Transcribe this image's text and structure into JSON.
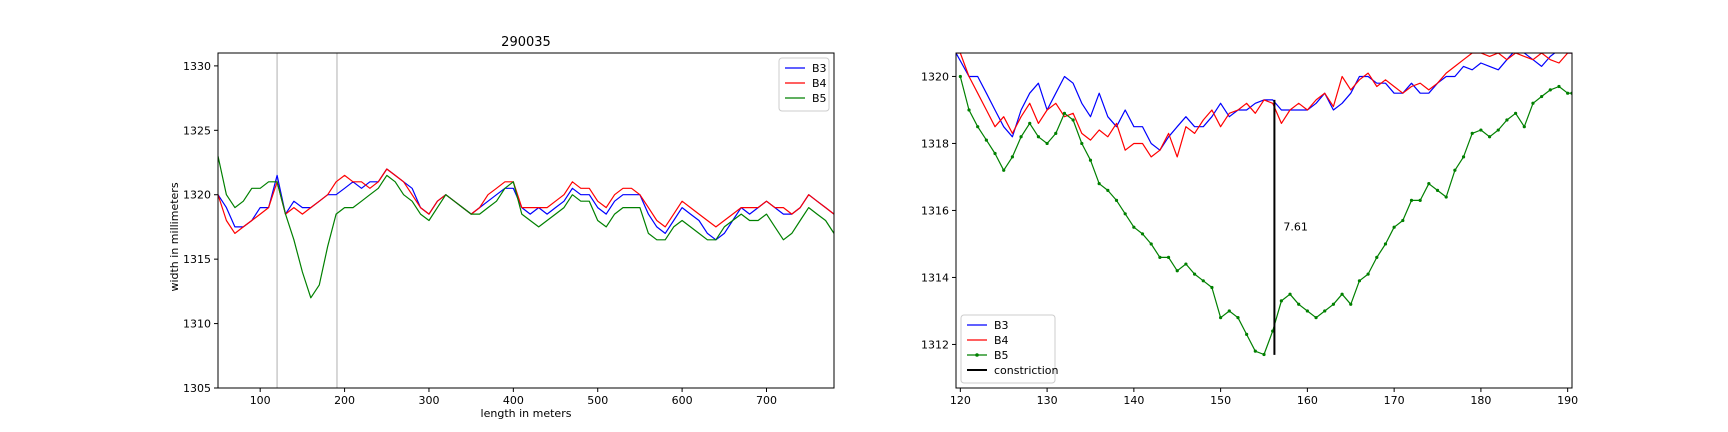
{
  "chart_data": [
    {
      "type": "line",
      "title": "290035",
      "xlabel": "length in meters",
      "ylabel": "width in millimeters",
      "xlim": [
        50,
        780
      ],
      "ylim": [
        1305,
        1331
      ],
      "xticks": [
        100,
        200,
        300,
        400,
        500,
        600,
        700
      ],
      "yticks": [
        1305,
        1310,
        1315,
        1320,
        1325,
        1330
      ],
      "vlines": [
        120,
        191
      ],
      "legend_position": "top-right",
      "grid": false,
      "series": [
        {
          "name": "B3",
          "color": "#0000ff",
          "x": [
            50,
            60,
            70,
            80,
            90,
            100,
            110,
            120,
            130,
            140,
            150,
            160,
            170,
            180,
            190,
            200,
            210,
            220,
            230,
            240,
            250,
            260,
            270,
            280,
            290,
            300,
            310,
            320,
            330,
            340,
            350,
            360,
            370,
            380,
            390,
            400,
            410,
            420,
            430,
            440,
            450,
            460,
            470,
            480,
            490,
            500,
            510,
            520,
            530,
            540,
            550,
            560,
            570,
            580,
            590,
            600,
            610,
            620,
            630,
            640,
            650,
            660,
            670,
            680,
            690,
            700,
            710,
            720,
            730,
            740,
            750,
            760,
            770,
            780
          ],
          "y": [
            1320,
            1319,
            1317.5,
            1317.5,
            1318,
            1319,
            1319,
            1321.5,
            1318.5,
            1319.5,
            1319,
            1319,
            1319.5,
            1320,
            1320,
            1320.5,
            1321,
            1320.5,
            1321,
            1321,
            1322,
            1321.5,
            1321,
            1320.5,
            1319,
            1318.5,
            1319.5,
            1320,
            1319.5,
            1319,
            1318.5,
            1319,
            1319.5,
            1320,
            1320.5,
            1320.5,
            1319,
            1318.5,
            1319,
            1318.5,
            1319,
            1319.5,
            1320.5,
            1320,
            1320,
            1319,
            1318.5,
            1319.5,
            1320,
            1320,
            1320,
            1318.5,
            1317.5,
            1317,
            1318,
            1319,
            1318.5,
            1318,
            1317,
            1316.5,
            1317,
            1318,
            1319,
            1318.5,
            1319,
            1319.5,
            1319,
            1318.5,
            1318.5,
            1319,
            1320,
            1319.5,
            1319,
            1318.5
          ]
        },
        {
          "name": "B4",
          "color": "#ff0000",
          "x": [
            50,
            60,
            70,
            80,
            90,
            100,
            110,
            120,
            130,
            140,
            150,
            160,
            170,
            180,
            190,
            200,
            210,
            220,
            230,
            240,
            250,
            260,
            270,
            280,
            290,
            300,
            310,
            320,
            330,
            340,
            350,
            360,
            370,
            380,
            390,
            400,
            410,
            420,
            430,
            440,
            450,
            460,
            470,
            480,
            490,
            500,
            510,
            520,
            530,
            540,
            550,
            560,
            570,
            580,
            590,
            600,
            610,
            620,
            630,
            640,
            650,
            660,
            670,
            680,
            690,
            700,
            710,
            720,
            730,
            740,
            750,
            760,
            770,
            780
          ],
          "y": [
            1320,
            1318,
            1317,
            1317.5,
            1318,
            1318.5,
            1319,
            1321,
            1318.5,
            1319,
            1318.5,
            1319,
            1319.5,
            1320,
            1321,
            1321.5,
            1321,
            1321,
            1320.5,
            1321,
            1322,
            1321.5,
            1321,
            1320,
            1319,
            1318.5,
            1319.5,
            1320,
            1319.5,
            1319,
            1318.5,
            1319,
            1320,
            1320.5,
            1321,
            1321,
            1319,
            1319,
            1319,
            1319,
            1319.5,
            1320,
            1321,
            1320.5,
            1320.5,
            1319.5,
            1319,
            1320,
            1320.5,
            1320.5,
            1320,
            1319,
            1318,
            1317.5,
            1318.5,
            1319.5,
            1319,
            1318.5,
            1318,
            1317.5,
            1318,
            1318.5,
            1319,
            1319,
            1319,
            1319.5,
            1319,
            1319,
            1318.5,
            1319,
            1320,
            1319.5,
            1319,
            1318.5
          ]
        },
        {
          "name": "B5",
          "color": "#008000",
          "x": [
            50,
            60,
            70,
            80,
            90,
            100,
            110,
            120,
            130,
            140,
            150,
            160,
            170,
            180,
            190,
            200,
            210,
            220,
            230,
            240,
            250,
            260,
            270,
            280,
            290,
            300,
            310,
            320,
            330,
            340,
            350,
            360,
            370,
            380,
            390,
            400,
            410,
            420,
            430,
            440,
            450,
            460,
            470,
            480,
            490,
            500,
            510,
            520,
            530,
            540,
            550,
            560,
            570,
            580,
            590,
            600,
            610,
            620,
            630,
            640,
            650,
            660,
            670,
            680,
            690,
            700,
            710,
            720,
            730,
            740,
            750,
            760,
            770,
            780
          ],
          "y": [
            1323,
            1320,
            1319,
            1319.5,
            1320.5,
            1320.5,
            1321,
            1321,
            1318.5,
            1316.5,
            1314,
            1312,
            1313,
            1316,
            1318.5,
            1319,
            1319,
            1319.5,
            1320,
            1320.5,
            1321.5,
            1321,
            1320,
            1319.5,
            1318.5,
            1318,
            1319,
            1320,
            1319.5,
            1319,
            1318.5,
            1318.5,
            1319,
            1319.5,
            1320.5,
            1321,
            1318.5,
            1318,
            1317.5,
            1318,
            1318.5,
            1319,
            1320,
            1319.5,
            1319.5,
            1318,
            1317.5,
            1318.5,
            1319,
            1319,
            1319,
            1317,
            1316.5,
            1316.5,
            1317.5,
            1318,
            1317.5,
            1317,
            1316.5,
            1316.5,
            1317.5,
            1318,
            1318.5,
            1318,
            1318,
            1318.5,
            1317.5,
            1316.5,
            1317,
            1318,
            1319,
            1318.5,
            1318,
            1317
          ]
        }
      ]
    },
    {
      "type": "line",
      "title": "",
      "xlabel": "",
      "ylabel": "",
      "xlim": [
        119.5,
        190.5
      ],
      "ylim": [
        1310.7,
        1320.7
      ],
      "xticks": [
        120,
        130,
        140,
        150,
        160,
        170,
        180,
        190
      ],
      "yticks": [
        1312,
        1314,
        1316,
        1318,
        1320
      ],
      "legend_position": "lower-left",
      "grid": false,
      "series": [
        {
          "name": "B3",
          "color": "#0000ff",
          "x": [
            119.5,
            121,
            122,
            123,
            124,
            125,
            126,
            127,
            128,
            129,
            130,
            131,
            132,
            133,
            134,
            135,
            136,
            137,
            138,
            139,
            140,
            141,
            142,
            143,
            144,
            145,
            146,
            147,
            148,
            149,
            150,
            151,
            152,
            153,
            154,
            155,
            156,
            157,
            158,
            159,
            160,
            161,
            162,
            163,
            164,
            165,
            166,
            167,
            168,
            169,
            170,
            171,
            172,
            173,
            174,
            175,
            176,
            177,
            178,
            179,
            180,
            181,
            182,
            183,
            184,
            185,
            186,
            187,
            188,
            189,
            190,
            190.5
          ],
          "y": [
            1320.7,
            1320,
            1320,
            1319.5,
            1319,
            1318.5,
            1318.2,
            1319,
            1319.5,
            1319.8,
            1319,
            1319.5,
            1320,
            1319.8,
            1319.2,
            1318.8,
            1319.5,
            1318.8,
            1318.5,
            1319,
            1318.5,
            1318.5,
            1318,
            1317.8,
            1318.2,
            1318.5,
            1318.8,
            1318.5,
            1318.5,
            1318.8,
            1319.2,
            1318.8,
            1319,
            1319,
            1319.2,
            1319.3,
            1319.3,
            1319,
            1319,
            1319,
            1319,
            1319.2,
            1319.5,
            1319,
            1319.2,
            1319.5,
            1320,
            1320,
            1319.8,
            1319.8,
            1319.5,
            1319.5,
            1319.8,
            1319.5,
            1319.5,
            1319.8,
            1320,
            1320,
            1320.3,
            1320.2,
            1320.4,
            1320.3,
            1320.2,
            1320.5,
            1320.8,
            1320.7,
            1320.5,
            1320.3,
            1320.6,
            1320.8,
            1320.7,
            1320.7
          ]
        },
        {
          "name": "B4",
          "color": "#ff0000",
          "x": [
            119.5,
            120,
            121,
            122,
            123,
            124,
            125,
            126,
            127,
            128,
            129,
            130,
            131,
            132,
            133,
            134,
            135,
            136,
            137,
            138,
            139,
            140,
            141,
            142,
            143,
            144,
            145,
            146,
            147,
            148,
            149,
            150,
            151,
            152,
            153,
            154,
            155,
            156,
            157,
            158,
            159,
            160,
            161,
            162,
            163,
            164,
            165,
            166,
            167,
            168,
            169,
            170,
            171,
            172,
            173,
            174,
            175,
            176,
            177,
            178,
            179,
            180,
            181,
            182,
            183,
            184,
            185,
            186,
            187,
            188,
            189,
            190,
            190.5
          ],
          "y": [
            1320.7,
            1320.7,
            1320,
            1319.5,
            1319,
            1318.5,
            1318.8,
            1318.3,
            1318.8,
            1319.2,
            1318.6,
            1319,
            1319.2,
            1318.8,
            1318.9,
            1318.3,
            1318.1,
            1318.4,
            1318.2,
            1318.6,
            1317.8,
            1318,
            1318,
            1317.6,
            1317.8,
            1318.3,
            1317.6,
            1318.5,
            1318.3,
            1318.7,
            1319,
            1318.5,
            1318.9,
            1319,
            1319.2,
            1318.9,
            1319.3,
            1319.2,
            1318.6,
            1319,
            1319.2,
            1319,
            1319.3,
            1319.5,
            1319.1,
            1320,
            1319.6,
            1319.9,
            1320.1,
            1319.7,
            1319.9,
            1319.7,
            1319.5,
            1319.7,
            1319.8,
            1319.6,
            1319.8,
            1320.1,
            1320.3,
            1320.5,
            1320.7,
            1320.7,
            1320.6,
            1320.7,
            1320.5,
            1320.7,
            1320.6,
            1320.5,
            1320.7,
            1320.5,
            1320.4,
            1320.7,
            1320.7
          ]
        },
        {
          "name": "B5",
          "color": "#008000",
          "x": [
            120,
            121,
            122,
            123,
            124,
            125,
            126,
            127,
            128,
            129,
            130,
            131,
            132,
            133,
            134,
            135,
            136,
            137,
            138,
            139,
            140,
            141,
            142,
            143,
            144,
            145,
            146,
            147,
            148,
            149,
            150,
            151,
            152,
            153,
            154,
            155,
            156,
            157,
            158,
            159,
            160,
            161,
            162,
            163,
            164,
            165,
            166,
            167,
            168,
            169,
            170,
            171,
            172,
            173,
            174,
            175,
            176,
            177,
            178,
            179,
            180,
            181,
            182,
            183,
            184,
            185,
            186,
            187,
            188,
            189,
            190,
            190.5
          ],
          "y": [
            1320,
            1319,
            1318.5,
            1318.1,
            1317.7,
            1317.2,
            1317.6,
            1318.2,
            1318.6,
            1318.2,
            1318,
            1318.3,
            1318.9,
            1318.7,
            1318,
            1317.5,
            1316.8,
            1316.6,
            1316.3,
            1315.9,
            1315.5,
            1315.3,
            1315,
            1314.6,
            1314.6,
            1314.2,
            1314.4,
            1314.1,
            1313.9,
            1313.7,
            1312.8,
            1313,
            1312.8,
            1312.3,
            1311.8,
            1311.7,
            1312.4,
            1313.3,
            1313.5,
            1313.2,
            1313,
            1312.8,
            1313,
            1313.2,
            1313.5,
            1313.2,
            1313.9,
            1314.1,
            1314.6,
            1315,
            1315.5,
            1315.7,
            1316.3,
            1316.3,
            1316.8,
            1316.6,
            1316.4,
            1317.2,
            1317.6,
            1318.3,
            1318.4,
            1318.2,
            1318.4,
            1318.7,
            1318.9,
            1318.5,
            1319.2,
            1319.4,
            1319.6,
            1319.7,
            1319.5,
            1319.5
          ]
        }
      ],
      "constriction": {
        "name": "constriction",
        "color": "#000000",
        "x": 156.2,
        "y_top": 1319.3,
        "y_bottom": 1311.69,
        "label": "7.61"
      }
    }
  ]
}
